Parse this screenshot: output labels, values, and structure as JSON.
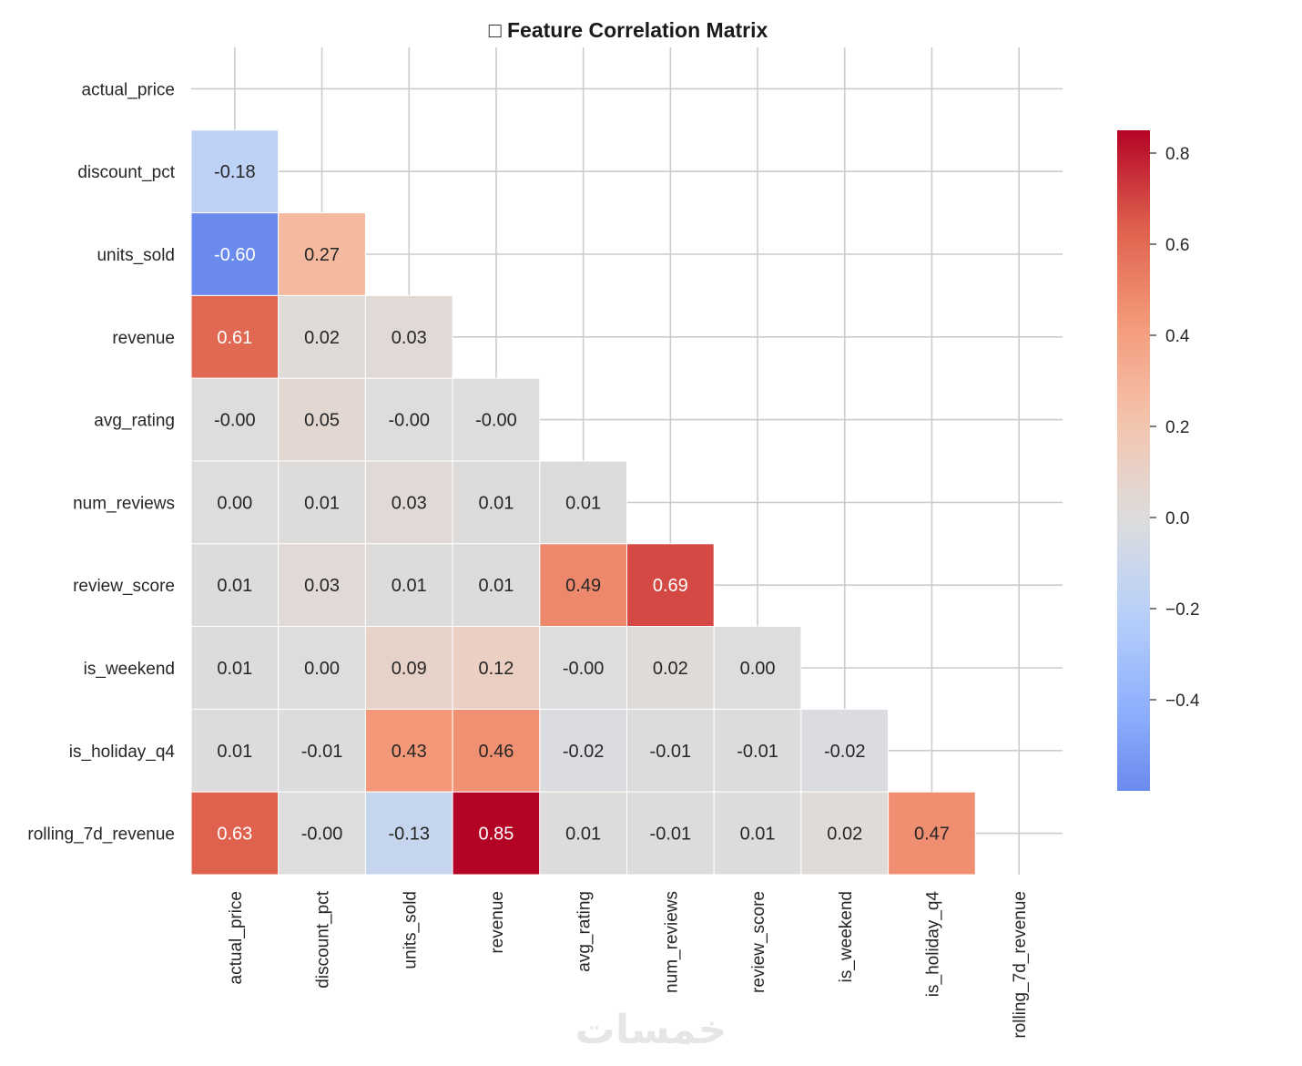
{
  "chart_data": {
    "type": "heatmap",
    "title": "□ Feature Correlation Matrix",
    "labels": [
      "actual_price",
      "discount_pct",
      "units_sold",
      "revenue",
      "avg_rating",
      "num_reviews",
      "review_score",
      "is_weekend",
      "is_holiday_q4",
      "rolling_7d_revenue"
    ],
    "mask": "upper-triangle-including-diagonal",
    "lower_values": [
      [],
      [
        -0.18
      ],
      [
        -0.6,
        0.27
      ],
      [
        0.61,
        0.02,
        0.03
      ],
      [
        -0.0,
        0.05,
        -0.0,
        -0.0
      ],
      [
        0.0,
        0.01,
        0.03,
        0.01,
        0.01
      ],
      [
        0.01,
        0.03,
        0.01,
        0.01,
        0.49,
        0.69
      ],
      [
        0.01,
        0.0,
        0.09,
        0.12,
        -0.0,
        0.02,
        0.0
      ],
      [
        0.01,
        -0.01,
        0.43,
        0.46,
        -0.02,
        -0.01,
        -0.01,
        -0.02
      ],
      [
        0.63,
        -0.0,
        -0.13,
        0.85,
        0.01,
        -0.01,
        0.01,
        0.02,
        0.47
      ]
    ],
    "value_labels": [
      [],
      [
        "-0.18"
      ],
      [
        "-0.60",
        "0.27"
      ],
      [
        "0.61",
        "0.02",
        "0.03"
      ],
      [
        "-0.00",
        "0.05",
        "-0.00",
        "-0.00"
      ],
      [
        "0.00",
        "0.01",
        "0.03",
        "0.01",
        "0.01"
      ],
      [
        "0.01",
        "0.03",
        "0.01",
        "0.01",
        "0.49",
        "0.69"
      ],
      [
        "0.01",
        "0.00",
        "0.09",
        "0.12",
        "-0.00",
        "0.02",
        "0.00"
      ],
      [
        "0.01",
        "-0.01",
        "0.43",
        "0.46",
        "-0.02",
        "-0.01",
        "-0.01",
        "-0.02"
      ],
      [
        "0.63",
        "-0.00",
        "-0.13",
        "0.85",
        "0.01",
        "-0.01",
        "0.01",
        "0.02",
        "0.47"
      ]
    ],
    "colormap": "coolwarm",
    "colorbar": {
      "vmin": -0.6,
      "vmax": 0.85,
      "ticks": [
        0.8,
        0.6,
        0.4,
        0.2,
        0.0,
        -0.2,
        -0.4
      ],
      "tick_labels": [
        "0.8",
        "0.6",
        "0.4",
        "0.2",
        "0.0",
        "−0.2",
        "−0.4"
      ]
    },
    "grid": true
  },
  "watermark": "خمسات"
}
